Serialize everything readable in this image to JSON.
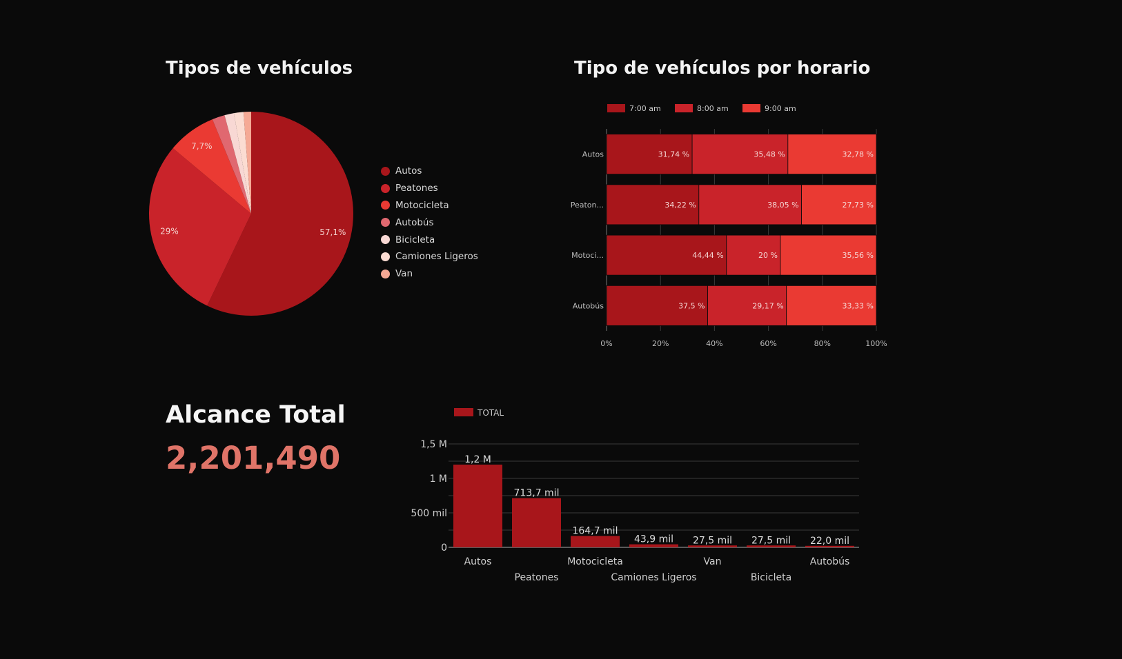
{
  "colors": {
    "background": "#0a0a0a",
    "pie": [
      "#a8161b",
      "#c9232a",
      "#ea3a33",
      "#e06870",
      "#f8d8d4",
      "#fbdcd2",
      "#f5a995"
    ],
    "bar100": [
      "#a8161b",
      "#c9232a",
      "#ea3a33"
    ],
    "total_accent": "#e07468"
  },
  "alcance": {
    "label": "Alcance Total",
    "value": "2,201,490"
  },
  "chart_data": [
    {
      "type": "pie",
      "title": "Tipos de vehículos",
      "legend_position": "right",
      "labels": [
        "Autos",
        "Peatones",
        "Motocicleta",
        "Autobús",
        "Bicicleta",
        "Camiones Ligeros",
        "Van"
      ],
      "values": [
        57.1,
        29.0,
        7.7,
        2.0,
        1.5,
        1.5,
        1.2
      ],
      "data_labels": [
        "57,1%",
        "29%",
        "7,7%",
        "",
        "",
        "",
        ""
      ]
    },
    {
      "type": "bar",
      "orientation": "horizontal",
      "stacked": "percent",
      "title": "Tipo de vehículos por horario",
      "legend_position": "top",
      "categories": [
        "Autos",
        "Peaton...",
        "Motoci...",
        "Autobús"
      ],
      "series": [
        {
          "name": "7:00 am",
          "values": [
            31.74,
            34.22,
            44.44,
            37.5
          ],
          "labels": [
            "31,74 %",
            "34,22 %",
            "44,44 %",
            "37,5 %"
          ]
        },
        {
          "name": "8:00 am",
          "values": [
            35.48,
            38.05,
            20.0,
            29.17
          ],
          "labels": [
            "35,48 %",
            "38,05 %",
            "20 %",
            "29,17 %"
          ]
        },
        {
          "name": "9:00 am",
          "values": [
            32.78,
            27.73,
            35.56,
            33.33
          ],
          "labels": [
            "32,78 %",
            "27,73 %",
            "35,56 %",
            "33,33 %"
          ]
        }
      ],
      "xlim": [
        0,
        100
      ],
      "x_ticks": [
        "0%",
        "20%",
        "40%",
        "60%",
        "80%",
        "100%"
      ],
      "grid": true
    },
    {
      "type": "bar",
      "orientation": "vertical",
      "legend_position": "top-left",
      "series": [
        {
          "name": "TOTAL",
          "values": [
            1200000,
            713700,
            164700,
            43900,
            27500,
            27500,
            22000
          ],
          "labels": [
            "1,2 M",
            "713,7 mil",
            "164,7 mil",
            "43,9 mil",
            "27,5 mil",
            "27,5 mil",
            "22,0 mil"
          ]
        }
      ],
      "categories": [
        "Autos",
        "Peatones",
        "Motocicleta",
        "Camiones Ligeros",
        "Van",
        "Bicicleta",
        "Autobús"
      ],
      "ylim": [
        0,
        1500000
      ],
      "y_ticks": [
        {
          "value": 0,
          "label": "0"
        },
        {
          "value": 500000,
          "label": "500 mil"
        },
        {
          "value": 1000000,
          "label": "1 M"
        },
        {
          "value": 1500000,
          "label": "1,5 M"
        }
      ],
      "grid": true
    }
  ]
}
